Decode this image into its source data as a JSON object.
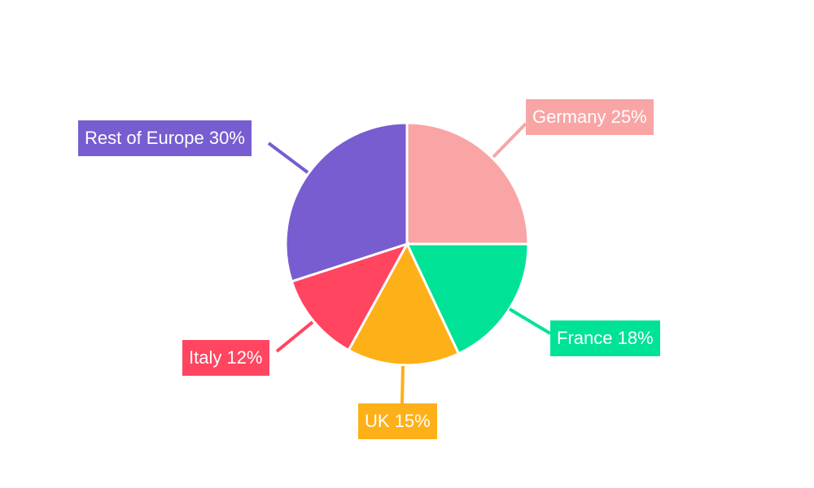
{
  "chart_data": {
    "type": "pie",
    "title": "",
    "start_angle": "top",
    "direction": "clockwise",
    "slices": [
      {
        "label": "Germany",
        "value": 25,
        "display": "Germany 25%",
        "color": "#F9A5A5"
      },
      {
        "label": "France",
        "value": 18,
        "display": "France 18%",
        "color": "#00E396"
      },
      {
        "label": "UK",
        "value": 15,
        "display": "UK 15%",
        "color": "#FEB019"
      },
      {
        "label": "Italy",
        "value": 12,
        "display": "Italy 12%",
        "color": "#FF4560"
      },
      {
        "label": "Rest of Europe",
        "value": 30,
        "display": "Rest of Europe 30%",
        "color": "#775DD0"
      }
    ]
  }
}
